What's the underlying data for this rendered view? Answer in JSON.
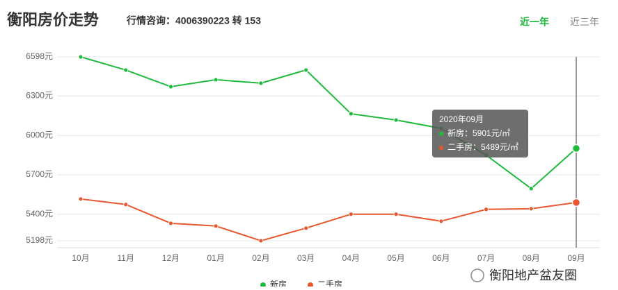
{
  "header": {
    "title": "衡阳房价走势",
    "hotline": "行情咨询：4006390223 转 153",
    "tabs": [
      "近一年",
      "近三年"
    ],
    "active_tab": 0
  },
  "chart_data": {
    "type": "line",
    "categories": [
      "10月",
      "11月",
      "12月",
      "01月",
      "02月",
      "03月",
      "04月",
      "05月",
      "06月",
      "07月",
      "08月",
      "09月"
    ],
    "series": [
      {
        "name": "新房",
        "color": "#1fba3c",
        "values": [
          6598,
          6498,
          6371,
          6424,
          6398,
          6498,
          6165,
          6117,
          6054,
          5850,
          5595,
          5901
        ]
      },
      {
        "name": "二手房",
        "color": "#e8572e",
        "values": [
          5516,
          5474,
          5331,
          5310,
          5198,
          5294,
          5400,
          5400,
          5347,
          5437,
          5442,
          5489
        ]
      }
    ],
    "ylim": [
      5198,
      6598
    ],
    "yticks": [
      {
        "value": 5198,
        "label": "5198元"
      },
      {
        "value": 5400,
        "label": "5400元"
      },
      {
        "value": 5700,
        "label": "5700元"
      },
      {
        "value": 6000,
        "label": "6000元"
      },
      {
        "value": 6300,
        "label": "6300元"
      },
      {
        "value": 6598,
        "label": "6598元"
      }
    ],
    "grid": true,
    "highlight_index": 11
  },
  "tooltip": {
    "title": "2020年09月",
    "lines": [
      "新房：5901元/㎡",
      "二手房：5489元/㎡"
    ]
  },
  "watermark": "衡阳地产盆友圈"
}
